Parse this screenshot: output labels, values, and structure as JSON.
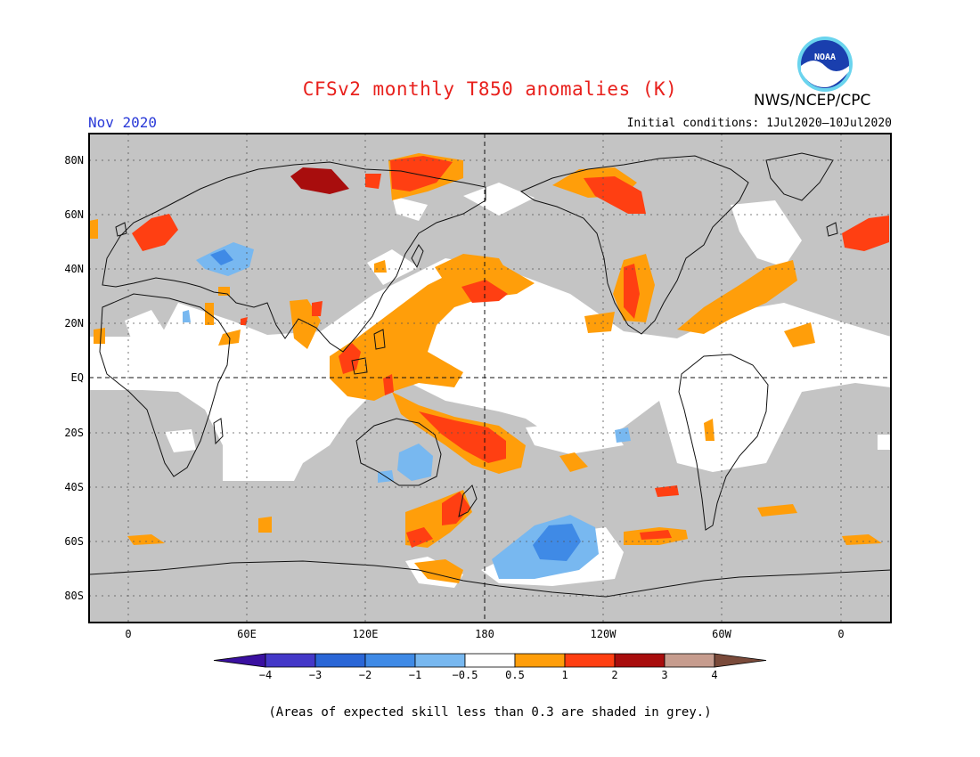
{
  "header": {
    "title": "CFSv2 monthly T850 anomalies (K)",
    "agency": "NWS/NCEP/CPC",
    "logo_text": "NOAA",
    "period": "Nov 2020",
    "initial_conditions": "Initial conditions: 1Jul2020–10Jul2020"
  },
  "map": {
    "lat_labels": [
      "80N",
      "60N",
      "40N",
      "20N",
      "EQ",
      "20S",
      "40S",
      "60S",
      "80S"
    ],
    "lon_labels": [
      "0",
      "60E",
      "120E",
      "180",
      "120W",
      "60W",
      "0"
    ],
    "colors": {
      "no_skill": "#c4c4c4",
      "neutral": "#ffffff",
      "warm_0_5": "#ff9e0a",
      "warm_1": "#ff3f12",
      "warm_2": "#a80d0d",
      "cool_0_5": "#78b8f0",
      "cool_1": "#3f8ae6"
    }
  },
  "colorbar": {
    "ticks": [
      "−4",
      "−3",
      "−2",
      "−1",
      "−0.5",
      "0.5",
      "1",
      "2",
      "3",
      "4"
    ],
    "colors": [
      "#3a10a0",
      "#4438c8",
      "#2a66d6",
      "#3f8ae6",
      "#78b8f0",
      "#ffffff",
      "#ff9e0a",
      "#ff3f12",
      "#a80d0d",
      "#c69c8e",
      "#7a4a3a"
    ]
  },
  "footnote": "(Areas of expected skill less than 0.3 are shaded in grey.)"
}
